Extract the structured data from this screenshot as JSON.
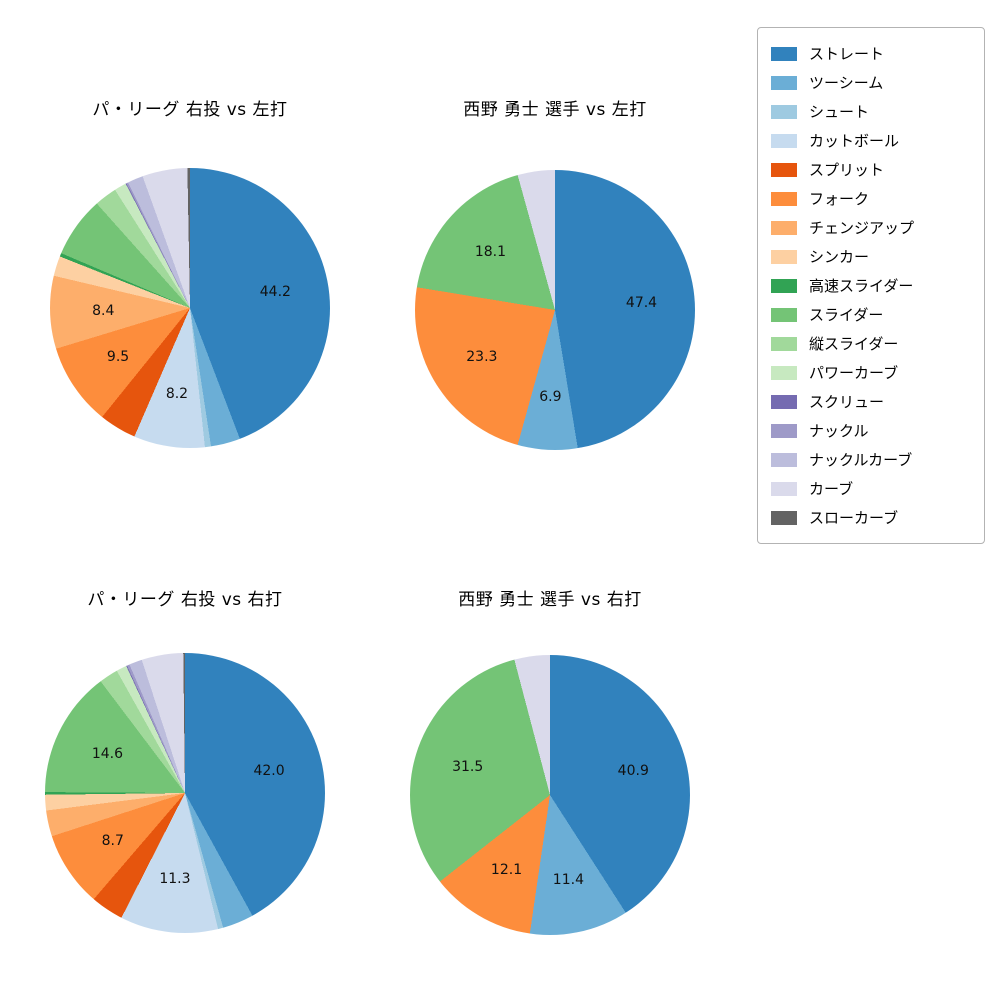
{
  "figure": {
    "background": "#ffffff"
  },
  "legend": {
    "position": "top-right",
    "border_color": "#b3b3b3",
    "items": [
      {
        "label": "ストレート",
        "color": "#3182bd"
      },
      {
        "label": "ツーシーム",
        "color": "#6baed6"
      },
      {
        "label": "シュート",
        "color": "#9ecae1"
      },
      {
        "label": "カットボール",
        "color": "#c6dbef"
      },
      {
        "label": "スプリット",
        "color": "#e6550d"
      },
      {
        "label": "フォーク",
        "color": "#fd8d3c"
      },
      {
        "label": "チェンジアップ",
        "color": "#fdae6b"
      },
      {
        "label": "シンカー",
        "color": "#fdd0a2"
      },
      {
        "label": "高速スライダー",
        "color": "#31a354"
      },
      {
        "label": "スライダー",
        "color": "#74c476"
      },
      {
        "label": "縦スライダー",
        "color": "#a1d99b"
      },
      {
        "label": "パワーカーブ",
        "color": "#c7e9c0"
      },
      {
        "label": "スクリュー",
        "color": "#756bb1"
      },
      {
        "label": "ナックル",
        "color": "#9e9ac8"
      },
      {
        "label": "ナックルカーブ",
        "color": "#bcbddc"
      },
      {
        "label": "カーブ",
        "color": "#dadaeb"
      },
      {
        "label": "スローカーブ",
        "color": "#636363"
      }
    ]
  },
  "chart_data": [
    {
      "type": "pie",
      "title": "パ・リーグ 右投 vs 左打",
      "start_angle": "top",
      "direction": "clockwise",
      "label_distance": 0.62,
      "slices": [
        {
          "name": "ストレート",
          "value": 44.2,
          "labeled": true
        },
        {
          "name": "ツーシーム",
          "value": 3.4,
          "labeled": false
        },
        {
          "name": "シュート",
          "value": 0.7,
          "labeled": false
        },
        {
          "name": "カットボール",
          "value": 8.2,
          "labeled": true
        },
        {
          "name": "スプリット",
          "value": 4.3,
          "labeled": false
        },
        {
          "name": "フォーク",
          "value": 9.5,
          "labeled": true
        },
        {
          "name": "チェンジアップ",
          "value": 8.4,
          "labeled": true
        },
        {
          "name": "シンカー",
          "value": 2.3,
          "labeled": false
        },
        {
          "name": "高速スライダー",
          "value": 0.4,
          "labeled": false
        },
        {
          "name": "スライダー",
          "value": 7.0,
          "labeled": false
        },
        {
          "name": "縦スライダー",
          "value": 2.6,
          "labeled": false
        },
        {
          "name": "パワーカーブ",
          "value": 1.4,
          "labeled": false
        },
        {
          "name": "スクリュー",
          "value": 0.1,
          "labeled": false
        },
        {
          "name": "ナックル",
          "value": 0.2,
          "labeled": false
        },
        {
          "name": "ナックルカーブ",
          "value": 1.8,
          "labeled": false
        },
        {
          "name": "カーブ",
          "value": 5.2,
          "labeled": false
        },
        {
          "name": "スローカーブ",
          "value": 0.3,
          "labeled": false
        }
      ]
    },
    {
      "type": "pie",
      "title": "西野 勇士 選手 vs 左打",
      "start_angle": "top",
      "direction": "clockwise",
      "label_distance": 0.62,
      "slices": [
        {
          "name": "ストレート",
          "value": 47.4,
          "labeled": true
        },
        {
          "name": "ツーシーム",
          "value": 6.9,
          "labeled": true
        },
        {
          "name": "フォーク",
          "value": 23.3,
          "labeled": true
        },
        {
          "name": "スライダー",
          "value": 18.1,
          "labeled": true
        },
        {
          "name": "カーブ",
          "value": 4.3,
          "labeled": false
        }
      ]
    },
    {
      "type": "pie",
      "title": "パ・リーグ 右投 vs 右打",
      "start_angle": "top",
      "direction": "clockwise",
      "label_distance": 0.62,
      "slices": [
        {
          "name": "ストレート",
          "value": 42.0,
          "labeled": true
        },
        {
          "name": "ツーシーム",
          "value": 3.6,
          "labeled": false
        },
        {
          "name": "シュート",
          "value": 0.6,
          "labeled": false
        },
        {
          "name": "カットボール",
          "value": 11.3,
          "labeled": true
        },
        {
          "name": "スプリット",
          "value": 3.8,
          "labeled": false
        },
        {
          "name": "フォーク",
          "value": 8.7,
          "labeled": true
        },
        {
          "name": "チェンジアップ",
          "value": 3.0,
          "labeled": false
        },
        {
          "name": "シンカー",
          "value": 1.8,
          "labeled": false
        },
        {
          "name": "高速スライダー",
          "value": 0.3,
          "labeled": false
        },
        {
          "name": "スライダー",
          "value": 14.6,
          "labeled": true
        },
        {
          "name": "縦スライダー",
          "value": 2.2,
          "labeled": false
        },
        {
          "name": "パワーカーブ",
          "value": 1.2,
          "labeled": false
        },
        {
          "name": "スクリュー",
          "value": 0.1,
          "labeled": false
        },
        {
          "name": "ナックル",
          "value": 0.3,
          "labeled": false
        },
        {
          "name": "ナックルカーブ",
          "value": 1.5,
          "labeled": false
        },
        {
          "name": "カーブ",
          "value": 4.8,
          "labeled": false
        },
        {
          "name": "スローカーブ",
          "value": 0.2,
          "labeled": false
        }
      ]
    },
    {
      "type": "pie",
      "title": "西野 勇士 選手 vs 右打",
      "start_angle": "top",
      "direction": "clockwise",
      "label_distance": 0.62,
      "slices": [
        {
          "name": "ストレート",
          "value": 40.9,
          "labeled": true
        },
        {
          "name": "ツーシーム",
          "value": 11.4,
          "labeled": true
        },
        {
          "name": "フォーク",
          "value": 12.1,
          "labeled": true
        },
        {
          "name": "スライダー",
          "value": 31.5,
          "labeled": true
        },
        {
          "name": "カーブ",
          "value": 4.1,
          "labeled": false
        }
      ]
    }
  ]
}
